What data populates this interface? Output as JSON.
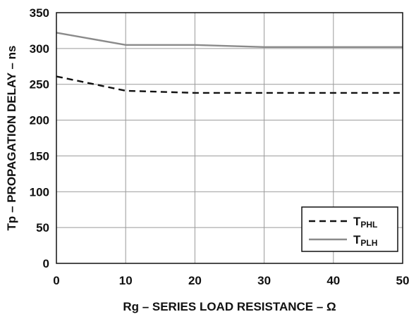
{
  "chart_data": {
    "type": "line",
    "xlabel": "Rg – SERIES LOAD RESISTANCE – Ω",
    "ylabel": "Tp – PROPAGATION DELAY – ns",
    "xlim": [
      0,
      50
    ],
    "ylim": [
      0,
      350
    ],
    "x_ticks": [
      0,
      10,
      20,
      30,
      40,
      50
    ],
    "y_ticks": [
      0,
      50,
      100,
      150,
      200,
      250,
      300,
      350
    ],
    "x_tick_labels": [
      "0",
      "10",
      "20",
      "30",
      "40",
      "50"
    ],
    "y_tick_labels": [
      "0",
      "50",
      "100",
      "150",
      "200",
      "250",
      "300",
      "350"
    ],
    "grid": true,
    "legend_position": "bottom-right",
    "series": [
      {
        "name": "TPHL",
        "name_main": "T",
        "name_sub": "PHL",
        "style": "dashed",
        "color": "#111111",
        "x": [
          0,
          10,
          20,
          30,
          40,
          50
        ],
        "values": [
          261,
          241,
          238,
          238,
          238,
          238
        ]
      },
      {
        "name": "TPLH",
        "name_main": "T",
        "name_sub": "PLH",
        "style": "solid",
        "color": "#8a8a8a",
        "x": [
          0,
          10,
          20,
          30,
          40,
          50
        ],
        "values": [
          322,
          305,
          305,
          302,
          302,
          302
        ]
      }
    ]
  }
}
